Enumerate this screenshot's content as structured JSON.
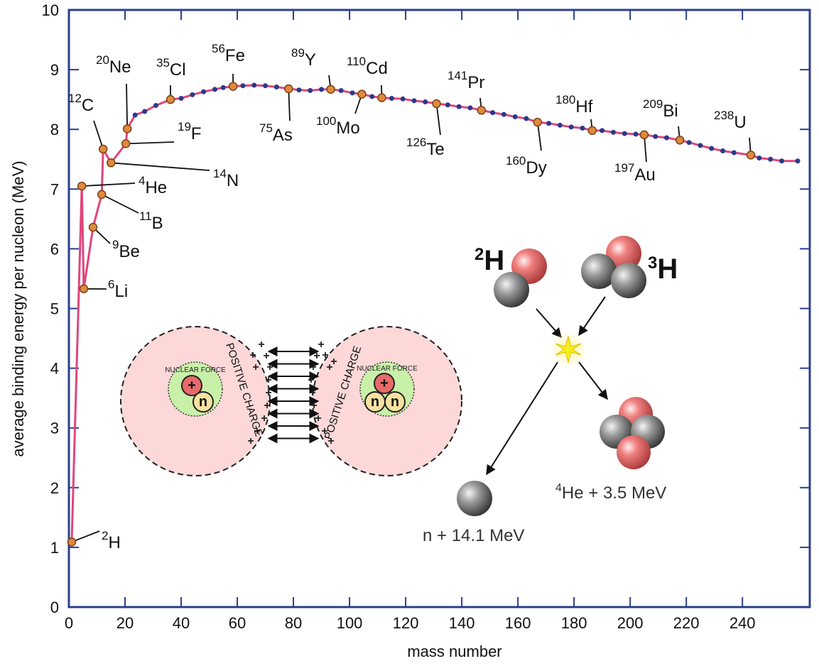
{
  "chart_data": {
    "type": "line",
    "x_label": "mass number",
    "y_label": "average binding energy per nucleon (MeV)",
    "xlim": [
      0,
      264
    ],
    "ylim": [
      0,
      10
    ],
    "xticks": [
      0,
      20,
      40,
      60,
      80,
      100,
      120,
      140,
      160,
      180,
      200,
      220,
      240
    ],
    "yticks": [
      0,
      1,
      2,
      3,
      4,
      5,
      6,
      7,
      8,
      9,
      10
    ],
    "color": "#e0457b",
    "marker_color": "#2a3a8c",
    "annotation_color": "#e08a3c",
    "x": [
      1.0,
      4.6,
      5.3,
      8.6,
      11.7,
      12.2,
      15.0,
      20.3,
      20.8,
      23.6,
      27,
      31,
      36.2,
      40,
      44,
      48,
      52,
      55,
      58.5,
      62,
      66,
      70,
      74,
      78.3,
      82,
      86,
      90,
      93.3,
      97,
      101,
      104.4,
      108,
      111.5,
      115,
      119,
      123,
      127,
      131,
      135,
      139,
      143,
      147,
      151,
      155,
      159,
      163,
      167,
      171,
      175,
      179,
      183,
      186.5,
      190,
      194,
      198,
      202,
      205,
      209,
      213,
      217.7,
      221,
      225,
      229,
      233,
      237,
      243,
      246,
      250,
      254,
      259.7
    ],
    "values": [
      1.09,
      7.05,
      5.33,
      6.36,
      6.91,
      7.67,
      7.44,
      7.76,
      8.01,
      8.24,
      8.3,
      8.4,
      8.5,
      8.52,
      8.58,
      8.63,
      8.67,
      8.7,
      8.72,
      8.73,
      8.74,
      8.73,
      8.71,
      8.68,
      8.66,
      8.65,
      8.67,
      8.67,
      8.65,
      8.61,
      8.59,
      8.55,
      8.53,
      8.52,
      8.51,
      8.48,
      8.46,
      8.43,
      8.41,
      8.38,
      8.36,
      8.32,
      8.28,
      8.25,
      8.21,
      8.18,
      8.12,
      8.1,
      8.07,
      8.04,
      8.02,
      7.98,
      7.98,
      7.95,
      7.93,
      7.92,
      7.91,
      7.88,
      7.86,
      7.82,
      7.78,
      7.73,
      7.68,
      7.64,
      7.61,
      7.57,
      7.52,
      7.5,
      7.47,
      7.47
    ],
    "annotations": [
      {
        "mass": "2",
        "symbol": "H",
        "x": 1.0,
        "y": 1.09
      },
      {
        "mass": "4",
        "symbol": "He",
        "x": 4.6,
        "y": 7.05
      },
      {
        "mass": "6",
        "symbol": "Li",
        "x": 5.3,
        "y": 5.33
      },
      {
        "mass": "9",
        "symbol": "Be",
        "x": 8.6,
        "y": 6.36
      },
      {
        "mass": "11",
        "symbol": "B",
        "x": 11.7,
        "y": 6.91
      },
      {
        "mass": "12",
        "symbol": "C",
        "x": 12.2,
        "y": 7.67
      },
      {
        "mass": "14",
        "symbol": "N",
        "x": 15.0,
        "y": 7.44
      },
      {
        "mass": "19",
        "symbol": "F",
        "x": 20.3,
        "y": 7.76
      },
      {
        "mass": "20",
        "symbol": "Ne",
        "x": 20.8,
        "y": 8.01
      },
      {
        "mass": "35",
        "symbol": "Cl",
        "x": 36.2,
        "y": 8.5
      },
      {
        "mass": "56",
        "symbol": "Fe",
        "x": 58.5,
        "y": 8.72
      },
      {
        "mass": "75",
        "symbol": "As",
        "x": 78.3,
        "y": 8.68
      },
      {
        "mass": "89",
        "symbol": "Y",
        "x": 93.3,
        "y": 8.67
      },
      {
        "mass": "100",
        "symbol": "Mo",
        "x": 104.4,
        "y": 8.59
      },
      {
        "mass": "110",
        "symbol": "Cd",
        "x": 111.5,
        "y": 8.53
      },
      {
        "mass": "126",
        "symbol": "Te",
        "x": 131.0,
        "y": 8.43
      },
      {
        "mass": "141",
        "symbol": "Pr",
        "x": 147.0,
        "y": 8.32
      },
      {
        "mass": "160",
        "symbol": "Dy",
        "x": 167.0,
        "y": 8.12
      },
      {
        "mass": "180",
        "symbol": "Hf",
        "x": 186.5,
        "y": 7.98
      },
      {
        "mass": "197",
        "symbol": "Au",
        "x": 205.0,
        "y": 7.91
      },
      {
        "mass": "209",
        "symbol": "Bi",
        "x": 217.7,
        "y": 7.82
      },
      {
        "mass": "238",
        "symbol": "U",
        "x": 243.0,
        "y": 7.57
      }
    ]
  },
  "coulomb_diagram": {
    "charge_label": "POSITIVE CHARGE",
    "force_label": "NUCLEAR FORCE",
    "plus": "+",
    "neutron": "n"
  },
  "fusion_diagram": {
    "deuteron": {
      "mass": "2",
      "symbol": "H"
    },
    "triton": {
      "mass": "3",
      "symbol": "H"
    },
    "helium": {
      "mass": "4",
      "text": "He + 3.5 MeV"
    },
    "neutron_text": "n + 14.1 MeV"
  }
}
